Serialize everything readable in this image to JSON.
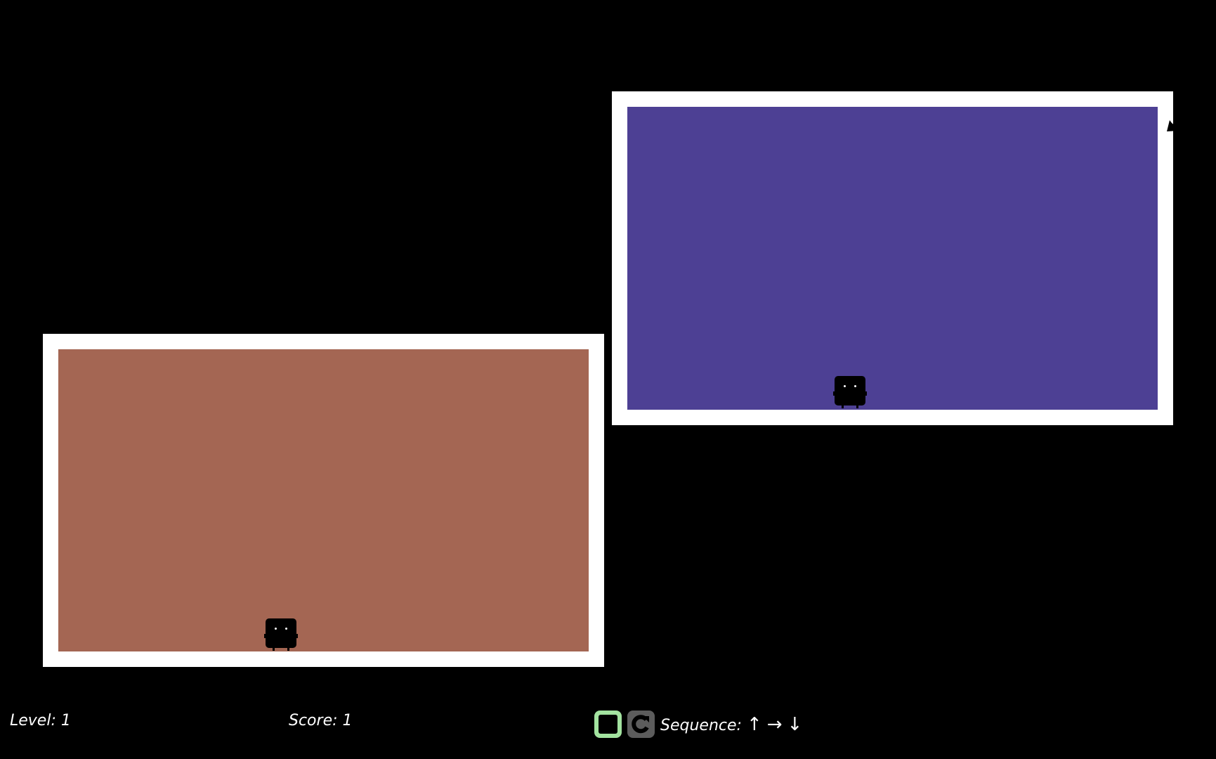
{
  "hud": {
    "level_label": "Level:",
    "level_value": "1",
    "score_label": "Score:",
    "score_value": "1",
    "sequence_label": "Sequence:",
    "sequence": [
      "↑",
      "→",
      "↓"
    ]
  },
  "rooms": [
    {
      "name": "left-room",
      "color": "#a46653"
    },
    {
      "name": "right-room",
      "color": "#4d4094"
    }
  ],
  "buttons": {
    "stop_icon": "square-icon",
    "restart_icon": "restart-icon",
    "stop_color": "#a3e3a0",
    "restart_color": "#5c5c5c"
  }
}
